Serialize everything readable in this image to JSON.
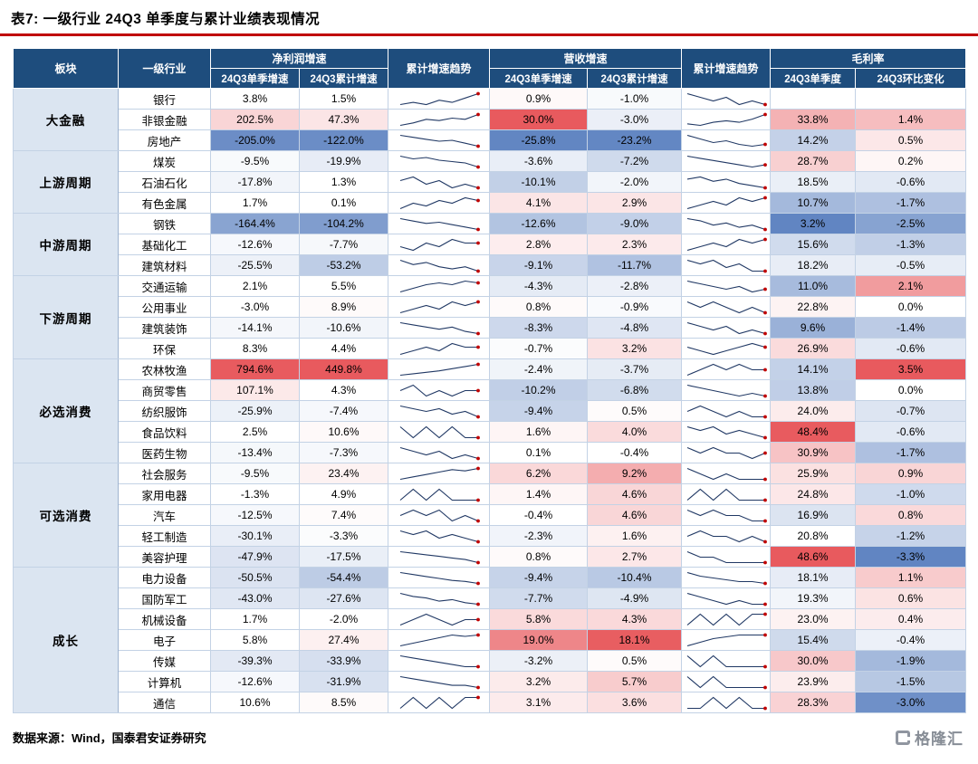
{
  "title": "表7:  一级行业 24Q3 单季度与累计业绩表现情况",
  "header": {
    "sector": "板块",
    "industry": "一级行业",
    "net_profit_group": "净利润增速",
    "revenue_group": "营收增速",
    "gross_margin_group": "毛利率",
    "np_trend": "累计增速趋势",
    "rev_trend": "累计增速趋势",
    "sub": [
      "24Q3单季增速",
      "24Q3累计增速",
      "24Q3单季增速",
      "24Q3累计增速",
      "24Q3单季度",
      "24Q3环比变化"
    ]
  },
  "footer": {
    "source": "数据来源：Wind，国泰君安证券研究",
    "brand": "格隆汇"
  },
  "colors": {
    "header_bg": "#1e4d7d",
    "sector_bg": "#dbe5f1",
    "positive_max": "#e85a5e",
    "negative_max": "#6185c2",
    "spark_line": "#203864",
    "spark_dot": "#c00000",
    "title_rule": "#c00000"
  },
  "chart_data": {
    "type": "table",
    "columns": [
      "板块",
      "一级行业",
      "净利润增速-24Q3单季增速",
      "净利润增速-24Q3累计增速",
      "净利润增速-累计增速趋势",
      "营收增速-24Q3单季增速",
      "营收增速-24Q3累计增速",
      "营收增速-累计增速趋势",
      "毛利率-24Q3单季度",
      "毛利率-24Q3环比变化"
    ],
    "groups": [
      {
        "sector": "大金融",
        "rows": [
          {
            "industry": "银行",
            "np_q": "3.8%",
            "np_c": "1.5%",
            "rev_q": "0.9%",
            "rev_c": "-1.0%",
            "gm_q": "",
            "gm_chg": "",
            "np_trend": [
              2,
              3,
              2,
              4,
              3,
              5,
              7
            ],
            "rev_trend": [
              5,
              4,
              3,
              4,
              2,
              3,
              2
            ]
          },
          {
            "industry": "非银金融",
            "np_q": "202.5%",
            "np_c": "47.3%",
            "rev_q": "30.0%",
            "rev_c": "-3.0%",
            "gm_q": "33.8%",
            "gm_chg": "1.4%",
            "np_trend": [
              -3,
              -1,
              2,
              1,
              3,
              2,
              6
            ],
            "rev_trend": [
              -2,
              -3,
              -1,
              0,
              -1,
              1,
              4
            ]
          },
          {
            "industry": "房地产",
            "np_q": "-205.0%",
            "np_c": "-122.0%",
            "rev_q": "-25.8%",
            "rev_c": "-23.2%",
            "gm_q": "14.2%",
            "gm_chg": "0.5%",
            "np_trend": [
              2,
              0,
              -2,
              -4,
              -3,
              -6,
              -9
            ],
            "rev_trend": [
              0,
              -2,
              -4,
              -3,
              -5,
              -6,
              -5
            ]
          }
        ]
      },
      {
        "sector": "上游周期",
        "rows": [
          {
            "industry": "煤炭",
            "np_q": "-9.5%",
            "np_c": "-19.9%",
            "rev_q": "-3.6%",
            "rev_c": "-7.2%",
            "gm_q": "28.7%",
            "gm_chg": "0.2%",
            "np_trend": [
              6,
              4,
              5,
              3,
              2,
              1,
              -2
            ],
            "rev_trend": [
              3,
              2,
              1,
              0,
              -1,
              -2,
              -1
            ]
          },
          {
            "industry": "石油石化",
            "np_q": "-17.8%",
            "np_c": "1.3%",
            "rev_q": "-10.1%",
            "rev_c": "-2.0%",
            "gm_q": "18.5%",
            "gm_chg": "-0.6%",
            "np_trend": [
              3,
              4,
              2,
              3,
              1,
              2,
              1
            ],
            "rev_trend": [
              2,
              3,
              1,
              2,
              0,
              -1,
              -2
            ]
          },
          {
            "industry": "有色金属",
            "np_q": "1.7%",
            "np_c": "0.1%",
            "rev_q": "4.1%",
            "rev_c": "2.9%",
            "gm_q": "10.7%",
            "gm_chg": "-1.7%",
            "np_trend": [
              -1,
              1,
              0,
              2,
              1,
              3,
              2
            ],
            "rev_trend": [
              0,
              1,
              2,
              1,
              3,
              2,
              3
            ]
          }
        ]
      },
      {
        "sector": "中游周期",
        "rows": [
          {
            "industry": "钢铁",
            "np_q": "-164.4%",
            "np_c": "-104.2%",
            "rev_q": "-12.6%",
            "rev_c": "-9.0%",
            "gm_q": "3.2%",
            "gm_chg": "-2.5%",
            "np_trend": [
              1,
              -1,
              -3,
              -2,
              -4,
              -6,
              -8
            ],
            "rev_trend": [
              0,
              -1,
              -3,
              -2,
              -4,
              -3,
              -5
            ]
          },
          {
            "industry": "基础化工",
            "np_q": "-12.6%",
            "np_c": "-7.7%",
            "rev_q": "2.8%",
            "rev_c": "2.3%",
            "gm_q": "15.6%",
            "gm_chg": "-1.3%",
            "np_trend": [
              -2,
              -3,
              -1,
              -2,
              0,
              -1,
              -1
            ],
            "rev_trend": [
              -1,
              0,
              1,
              0,
              2,
              1,
              2
            ]
          },
          {
            "industry": "建筑材料",
            "np_q": "-25.5%",
            "np_c": "-53.2%",
            "rev_q": "-9.1%",
            "rev_c": "-11.7%",
            "gm_q": "18.2%",
            "gm_chg": "-0.5%",
            "np_trend": [
              0,
              -2,
              -1,
              -3,
              -4,
              -3,
              -5
            ],
            "rev_trend": [
              -1,
              -2,
              -1,
              -3,
              -2,
              -4,
              -4
            ]
          }
        ]
      },
      {
        "sector": "下游周期",
        "rows": [
          {
            "industry": "交通运输",
            "np_q": "2.1%",
            "np_c": "5.5%",
            "rev_q": "-4.3%",
            "rev_c": "-2.8%",
            "gm_q": "11.0%",
            "gm_chg": "2.1%",
            "np_trend": [
              -2,
              0,
              2,
              3,
              2,
              4,
              3
            ],
            "rev_trend": [
              2,
              1,
              0,
              -1,
              0,
              -2,
              -1
            ]
          },
          {
            "industry": "公用事业",
            "np_q": "-3.0%",
            "np_c": "8.9%",
            "rev_q": "0.8%",
            "rev_c": "-0.9%",
            "gm_q": "22.8%",
            "gm_chg": "0.0%",
            "np_trend": [
              1,
              2,
              3,
              2,
              4,
              3,
              4
            ],
            "rev_trend": [
              1,
              0,
              1,
              0,
              -1,
              0,
              -1
            ]
          },
          {
            "industry": "建筑装饰",
            "np_q": "-14.1%",
            "np_c": "-10.6%",
            "rev_q": "-8.3%",
            "rev_c": "-4.8%",
            "gm_q": "9.6%",
            "gm_chg": "-1.4%",
            "np_trend": [
              1,
              0,
              -1,
              -2,
              -1,
              -3,
              -4
            ],
            "rev_trend": [
              0,
              -1,
              -2,
              -1,
              -3,
              -2,
              -3
            ]
          },
          {
            "industry": "环保",
            "np_q": "8.3%",
            "np_c": "4.4%",
            "rev_q": "-0.7%",
            "rev_c": "3.2%",
            "gm_q": "26.9%",
            "gm_chg": "-0.6%",
            "np_trend": [
              0,
              1,
              2,
              1,
              3,
              2,
              2
            ],
            "rev_trend": [
              1,
              0,
              -1,
              0,
              1,
              2,
              1
            ]
          }
        ]
      },
      {
        "sector": "必选消费",
        "rows": [
          {
            "industry": "农林牧渔",
            "np_q": "794.6%",
            "np_c": "449.8%",
            "rev_q": "-2.4%",
            "rev_c": "-3.7%",
            "gm_q": "14.1%",
            "gm_chg": "3.5%",
            "np_trend": [
              -6,
              -4,
              -2,
              0,
              3,
              6,
              9
            ],
            "rev_trend": [
              -3,
              -2,
              -1,
              -2,
              -1,
              -2,
              -2
            ]
          },
          {
            "industry": "商贸零售",
            "np_q": "107.1%",
            "np_c": "4.3%",
            "rev_q": "-10.2%",
            "rev_c": "-6.8%",
            "gm_q": "13.8%",
            "gm_chg": "0.0%",
            "np_trend": [
              2,
              3,
              1,
              2,
              1,
              2,
              2
            ],
            "rev_trend": [
              1,
              0,
              -1,
              -2,
              -3,
              -2,
              -3
            ]
          },
          {
            "industry": "纺织服饰",
            "np_q": "-25.9%",
            "np_c": "-7.4%",
            "rev_q": "-9.4%",
            "rev_c": "0.5%",
            "gm_q": "24.0%",
            "gm_chg": "-0.7%",
            "np_trend": [
              2,
              1,
              0,
              1,
              -1,
              0,
              -2
            ],
            "rev_trend": [
              1,
              2,
              1,
              0,
              1,
              0,
              0
            ]
          },
          {
            "industry": "食品饮料",
            "np_q": "2.5%",
            "np_c": "10.6%",
            "rev_q": "1.6%",
            "rev_c": "4.0%",
            "gm_q": "48.4%",
            "gm_chg": "-0.6%",
            "np_trend": [
              4,
              3,
              4,
              3,
              4,
              3,
              3
            ],
            "rev_trend": [
              4,
              3,
              4,
              2,
              3,
              2,
              1
            ]
          },
          {
            "industry": "医药生物",
            "np_q": "-13.4%",
            "np_c": "-7.3%",
            "rev_q": "0.1%",
            "rev_c": "-0.4%",
            "gm_q": "30.9%",
            "gm_chg": "-1.7%",
            "np_trend": [
              1,
              0,
              -1,
              0,
              -2,
              -1,
              -2
            ],
            "rev_trend": [
              1,
              0,
              1,
              0,
              0,
              -1,
              0
            ]
          }
        ]
      },
      {
        "sector": "可选消费",
        "rows": [
          {
            "industry": "社会服务",
            "np_q": "-9.5%",
            "np_c": "23.4%",
            "rev_q": "6.2%",
            "rev_c": "9.2%",
            "gm_q": "25.9%",
            "gm_chg": "0.9%",
            "np_trend": [
              -4,
              -2,
              0,
              2,
              4,
              3,
              5
            ],
            "rev_trend": [
              5,
              4,
              3,
              4,
              3,
              3,
              3
            ]
          },
          {
            "industry": "家用电器",
            "np_q": "-1.3%",
            "np_c": "4.9%",
            "rev_q": "1.4%",
            "rev_c": "4.6%",
            "gm_q": "24.8%",
            "gm_chg": "-1.0%",
            "np_trend": [
              2,
              3,
              2,
              3,
              2,
              2,
              2
            ],
            "rev_trend": [
              2,
              3,
              2,
              3,
              2,
              2,
              2
            ]
          },
          {
            "industry": "汽车",
            "np_q": "-12.5%",
            "np_c": "7.4%",
            "rev_q": "-0.4%",
            "rev_c": "4.6%",
            "gm_q": "16.9%",
            "gm_chg": "0.8%",
            "np_trend": [
              3,
              4,
              3,
              4,
              2,
              3,
              2
            ],
            "rev_trend": [
              3,
              2,
              3,
              2,
              2,
              1,
              1
            ]
          },
          {
            "industry": "轻工制造",
            "np_q": "-30.1%",
            "np_c": "-3.3%",
            "rev_q": "-2.3%",
            "rev_c": "1.6%",
            "gm_q": "20.8%",
            "gm_chg": "-1.2%",
            "np_trend": [
              2,
              1,
              2,
              0,
              1,
              0,
              -1
            ],
            "rev_trend": [
              1,
              2,
              1,
              1,
              0,
              1,
              0
            ]
          },
          {
            "industry": "美容护理",
            "np_q": "-47.9%",
            "np_c": "-17.5%",
            "rev_q": "0.8%",
            "rev_c": "2.7%",
            "gm_q": "48.6%",
            "gm_chg": "-3.3%",
            "np_trend": [
              3,
              2,
              1,
              0,
              -1,
              -2,
              -4
            ],
            "rev_trend": [
              3,
              2,
              2,
              1,
              1,
              1,
              1
            ]
          }
        ]
      },
      {
        "sector": "成长",
        "rows": [
          {
            "industry": "电力设备",
            "np_q": "-50.5%",
            "np_c": "-54.4%",
            "rev_q": "-9.4%",
            "rev_c": "-10.4%",
            "gm_q": "18.1%",
            "gm_chg": "1.1%",
            "np_trend": [
              4,
              2,
              0,
              -2,
              -4,
              -5,
              -7
            ],
            "rev_trend": [
              2,
              0,
              -1,
              -2,
              -3,
              -3,
              -4
            ]
          },
          {
            "industry": "国防军工",
            "np_q": "-43.0%",
            "np_c": "-27.6%",
            "rev_q": "-7.7%",
            "rev_c": "-4.9%",
            "gm_q": "19.3%",
            "gm_chg": "0.6%",
            "np_trend": [
              2,
              0,
              -1,
              -3,
              -2,
              -4,
              -5
            ],
            "rev_trend": [
              1,
              0,
              -1,
              -2,
              -1,
              -2,
              -2
            ]
          },
          {
            "industry": "机械设备",
            "np_q": "1.7%",
            "np_c": "-2.0%",
            "rev_q": "5.8%",
            "rev_c": "4.3%",
            "gm_q": "23.0%",
            "gm_chg": "0.4%",
            "np_trend": [
              -1,
              0,
              1,
              0,
              -1,
              0,
              0
            ],
            "rev_trend": [
              1,
              2,
              1,
              2,
              1,
              2,
              2
            ]
          },
          {
            "industry": "电子",
            "np_q": "5.8%",
            "np_c": "27.4%",
            "rev_q": "19.0%",
            "rev_c": "18.1%",
            "gm_q": "15.4%",
            "gm_chg": "-0.4%",
            "np_trend": [
              -4,
              -2,
              0,
              2,
              4,
              3,
              4
            ],
            "rev_trend": [
              -2,
              0,
              2,
              3,
              4,
              4,
              4
            ]
          },
          {
            "industry": "传媒",
            "np_q": "-39.3%",
            "np_c": "-33.9%",
            "rev_q": "-3.2%",
            "rev_c": "0.5%",
            "gm_q": "30.0%",
            "gm_chg": "-1.9%",
            "np_trend": [
              1,
              0,
              -1,
              -2,
              -3,
              -4,
              -4
            ],
            "rev_trend": [
              1,
              0,
              1,
              0,
              0,
              0,
              0
            ]
          },
          {
            "industry": "计算机",
            "np_q": "-12.6%",
            "np_c": "-31.9%",
            "rev_q": "3.2%",
            "rev_c": "5.7%",
            "gm_q": "23.9%",
            "gm_chg": "-1.5%",
            "np_trend": [
              1,
              0,
              -1,
              -2,
              -3,
              -3,
              -4
            ],
            "rev_trend": [
              2,
              1,
              2,
              1,
              1,
              1,
              1
            ]
          },
          {
            "industry": "通信",
            "np_q": "10.6%",
            "np_c": "8.5%",
            "rev_q": "3.1%",
            "rev_c": "3.6%",
            "gm_q": "28.3%",
            "gm_chg": "-3.0%",
            "np_trend": [
              2,
              3,
              2,
              3,
              2,
              3,
              3
            ],
            "rev_trend": [
              2,
              2,
              3,
              2,
              3,
              2,
              2
            ]
          }
        ]
      }
    ]
  }
}
